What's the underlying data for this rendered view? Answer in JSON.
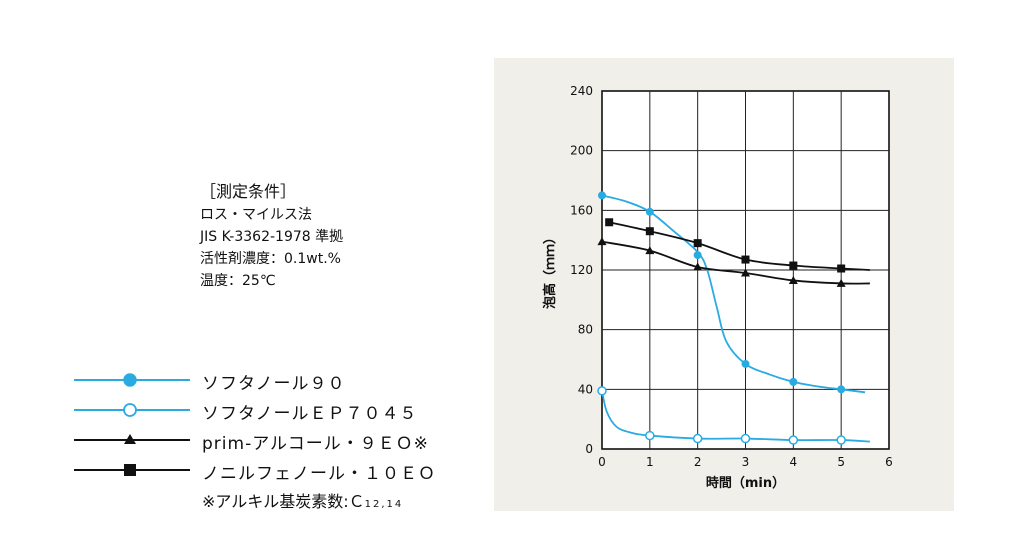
{
  "conditions": {
    "title": "［測定条件］",
    "lines": [
      "ロス・マイルス法",
      "JIS K-3362-1978 準拠",
      "活性剤濃度：0.1wt.%",
      "温度：25℃"
    ]
  },
  "legend": {
    "items": [
      {
        "label": "ソフタノール９０",
        "color": "#29abe2",
        "marker": "filled-circle"
      },
      {
        "label": "ソフタノールＥＰ７０４５",
        "color": "#29abe2",
        "marker": "open-circle"
      },
      {
        "label": "prim-アルコール・９ＥＯ※",
        "color": "#111111",
        "marker": "triangle"
      },
      {
        "label": "ノニルフェノール・１０ＥＯ",
        "color": "#111111",
        "marker": "square"
      }
    ],
    "note_main": "※アルキル基炭素数:Ｃ",
    "note_sub": "12,14"
  },
  "chart_data": {
    "type": "line",
    "xlabel": "時間（min）",
    "ylabel": "泡高（ｍｍ）",
    "xlim": [
      0,
      6
    ],
    "ylim": [
      0,
      240
    ],
    "xticks": [
      0,
      1,
      2,
      3,
      4,
      5,
      6
    ],
    "yticks": [
      0,
      40,
      80,
      120,
      160,
      200,
      240
    ],
    "grid": true,
    "series": [
      {
        "name": "ソフタノール９０",
        "color": "#29abe2",
        "marker": "filled-circle",
        "points": [
          [
            0,
            170
          ],
          [
            1,
            159
          ],
          [
            2,
            130
          ],
          [
            3,
            57
          ],
          [
            4,
            45
          ],
          [
            5,
            40
          ]
        ],
        "curve": [
          [
            0,
            170
          ],
          [
            0.5,
            166
          ],
          [
            1,
            159
          ],
          [
            1.5,
            146
          ],
          [
            2,
            132
          ],
          [
            2.2,
            120
          ],
          [
            2.4,
            95
          ],
          [
            2.6,
            72
          ],
          [
            3,
            57
          ],
          [
            3.5,
            50
          ],
          [
            4,
            45
          ],
          [
            4.5,
            42
          ],
          [
            5,
            40
          ],
          [
            5.5,
            38
          ]
        ]
      },
      {
        "name": "ソフタノールＥＰ７０４５",
        "color": "#29abe2",
        "marker": "open-circle",
        "points": [
          [
            0,
            39
          ],
          [
            1,
            9
          ],
          [
            2,
            7
          ],
          [
            3,
            7
          ],
          [
            4,
            6
          ],
          [
            5,
            6
          ]
        ],
        "curve": [
          [
            0,
            39
          ],
          [
            0.1,
            25
          ],
          [
            0.3,
            15
          ],
          [
            0.6,
            11
          ],
          [
            1,
            9
          ],
          [
            2,
            7
          ],
          [
            3,
            7
          ],
          [
            4,
            6
          ],
          [
            5,
            6
          ],
          [
            5.6,
            5
          ]
        ]
      },
      {
        "name": "prim-アルコール・９ＥＯ※",
        "color": "#111111",
        "marker": "triangle",
        "points": [
          [
            0,
            139
          ],
          [
            1,
            133
          ],
          [
            2,
            122
          ],
          [
            3,
            118
          ],
          [
            4,
            113
          ],
          [
            5,
            111
          ]
        ],
        "curve": [
          [
            0,
            139
          ],
          [
            1,
            133
          ],
          [
            2,
            122
          ],
          [
            3,
            118
          ],
          [
            4,
            113
          ],
          [
            5,
            111
          ],
          [
            5.6,
            111
          ]
        ]
      },
      {
        "name": "ノニルフェノール・１０ＥＯ",
        "color": "#111111",
        "marker": "square",
        "points": [
          [
            0.15,
            152
          ],
          [
            1,
            146
          ],
          [
            2,
            138
          ],
          [
            3,
            127
          ],
          [
            4,
            123
          ],
          [
            5,
            121
          ]
        ],
        "curve": [
          [
            0.15,
            152
          ],
          [
            1,
            146
          ],
          [
            2,
            138
          ],
          [
            3,
            127
          ],
          [
            4,
            123
          ],
          [
            5,
            121
          ],
          [
            5.6,
            120
          ]
        ]
      }
    ]
  }
}
